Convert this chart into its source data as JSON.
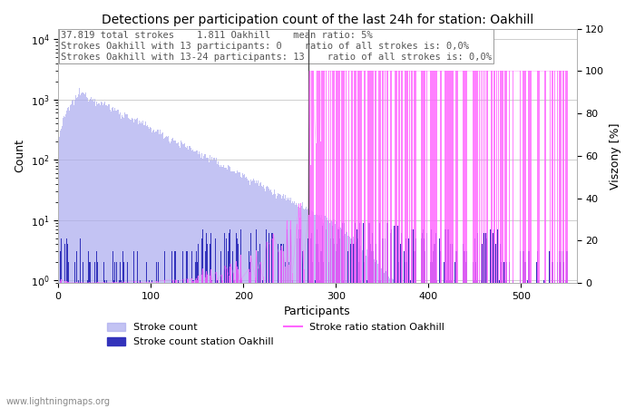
{
  "title": "Detections per participation count of the last 24h for station: Oakhill",
  "xlabel": "Participants",
  "ylabel_left": "Count",
  "ylabel_right": "Viszony [%]",
  "annotation_lines": [
    "37.819 total strokes    1.811 Oakhill    mean ratio: 5%",
    "Strokes Oakhill with 13 participants: 0    ratio of all strokes is: 0,0%",
    "Strokes Oakhill with 13-24 participants: 13    ratio of all strokes is: 0,0%"
  ],
  "watermark": "www.lightningmaps.org",
  "xlim": [
    0,
    560
  ],
  "ylim_right": [
    0,
    120
  ],
  "yticks_right": [
    0,
    20,
    40,
    60,
    80,
    100,
    120
  ],
  "legend_items": [
    {
      "label": "Stroke count",
      "color": "#aaaaee"
    },
    {
      "label": "Stroke count station Oakhill",
      "color": "#3333bb"
    },
    {
      "label": "Stroke ratio station Oakhill",
      "color": "#ff66ff"
    }
  ],
  "bar_color_global": "#aaaaee",
  "bar_color_station": "#3333bb",
  "line_color_ratio": "#ff66ff",
  "background_color": "#ffffff",
  "grid_color": "#bbbbbb",
  "vline_color": "#444444",
  "vline_x": 270,
  "title_fontsize": 10,
  "annot_fontsize": 7.5,
  "axis_fontsize": 9
}
